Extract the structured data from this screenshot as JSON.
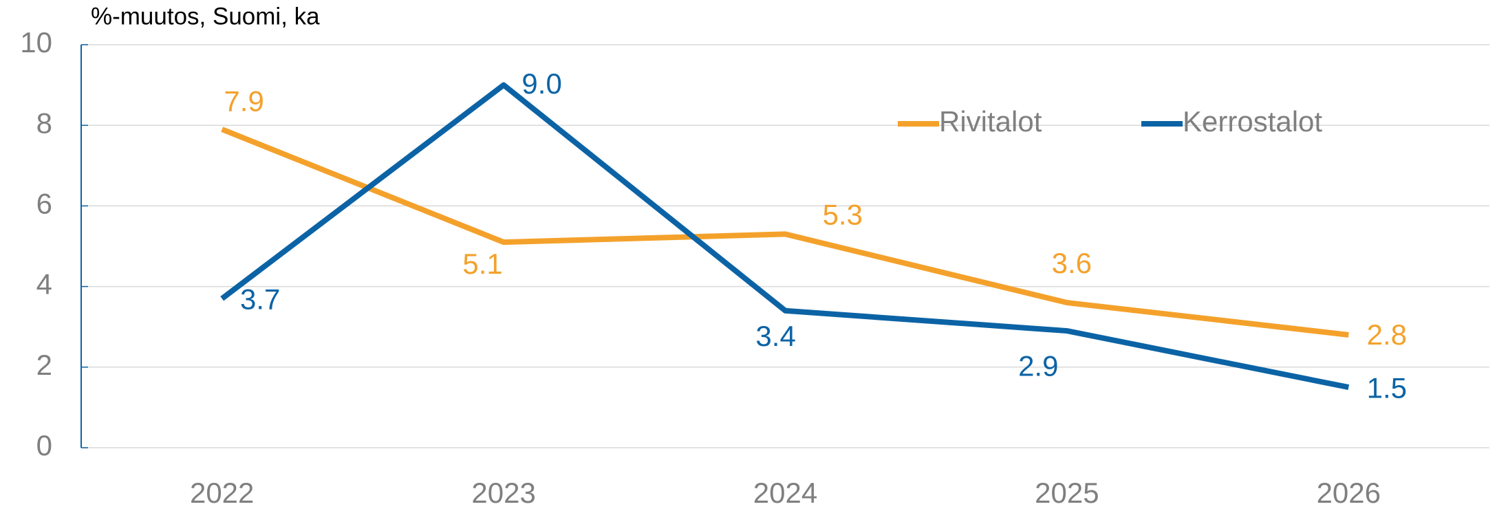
{
  "chart_data": {
    "type": "line",
    "y_axis_label": "%-muutos, Suomi, ka",
    "categories": [
      "2022",
      "2023",
      "2024",
      "2025",
      "2026"
    ],
    "series": [
      {
        "name": "Rivitalot",
        "color": "#f4a12b",
        "values": [
          7.9,
          5.1,
          5.3,
          3.6,
          2.8
        ],
        "value_labels": [
          "7.9",
          "5.1",
          "5.3",
          "3.6",
          "2.8"
        ]
      },
      {
        "name": "Kerrostalot",
        "color": "#0b63a5",
        "values": [
          3.7,
          9.0,
          3.4,
          2.9,
          1.5
        ],
        "value_labels": [
          "3.7",
          "9.0",
          "3.4",
          "2.9",
          "1.5"
        ]
      }
    ],
    "ylim": [
      0,
      10
    ],
    "yticks": [
      0,
      2,
      4,
      6,
      8,
      10
    ],
    "grid": true,
    "legend": "top-right"
  }
}
